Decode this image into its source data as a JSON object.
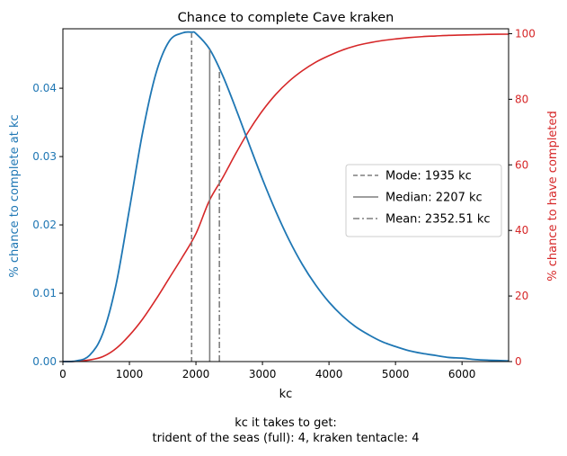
{
  "chart_data": {
    "type": "line",
    "title": "Chance to complete Cave kraken",
    "xlabel": "kc",
    "ylabel_left": "% chance to complete at kc",
    "ylabel_right": "% chance to have completed",
    "xlim": [
      0,
      6700
    ],
    "ylim_left": [
      0,
      0.0487
    ],
    "ylim_right": [
      0,
      101.5
    ],
    "x_ticks": [
      0,
      1000,
      2000,
      3000,
      4000,
      5000,
      6000
    ],
    "y_ticks_left": [
      0.0,
      0.01,
      0.02,
      0.03,
      0.04
    ],
    "y_ticks_left_labels": [
      "0.00",
      "0.01",
      "0.02",
      "0.03",
      "0.04"
    ],
    "y_ticks_right": [
      0,
      20,
      40,
      60,
      80,
      100
    ],
    "colors": {
      "pmf": "#1f77b4",
      "cdf": "#d62728",
      "marker": "#7f7f7f"
    },
    "series": [
      {
        "axis": "left",
        "x": [
          0,
          200,
          400,
          600,
          800,
          1000,
          1200,
          1400,
          1600,
          1800,
          1935,
          2000,
          2200,
          2400,
          2600,
          2800,
          3000,
          3200,
          3400,
          3600,
          3800,
          4000,
          4200,
          4400,
          4600,
          4800,
          5000,
          5200,
          5400,
          5600,
          5800,
          6000,
          6200,
          6400,
          6700
        ],
        "values": [
          0,
          0.0001,
          0.0009,
          0.0041,
          0.0113,
          0.0223,
          0.0336,
          0.0422,
          0.0469,
          0.0481,
          0.0482,
          0.048,
          0.0458,
          0.0419,
          0.037,
          0.0318,
          0.0267,
          0.022,
          0.0178,
          0.0142,
          0.0112,
          0.0087,
          0.0067,
          0.0051,
          0.0039,
          0.0029,
          0.0022,
          0.0016,
          0.0012,
          0.0009,
          0.0006,
          0.0005,
          0.0003,
          0.0002,
          0.0001
        ]
      },
      {
        "axis": "right",
        "x": [
          0,
          200,
          400,
          600,
          800,
          1000,
          1200,
          1400,
          1600,
          1800,
          2000,
          2200,
          2400,
          2600,
          2800,
          3000,
          3200,
          3400,
          3600,
          3800,
          4000,
          4200,
          4400,
          4600,
          4800,
          5000,
          5200,
          5400,
          5600,
          5800,
          6000,
          6200,
          6400,
          6700
        ],
        "values": [
          0,
          0.1,
          0.5,
          1.5,
          4,
          8,
          13,
          19,
          25.5,
          32,
          39,
          49,
          56,
          63.5,
          70.5,
          76.5,
          81.5,
          85.5,
          88.7,
          91.3,
          93.3,
          95,
          96.3,
          97.2,
          97.9,
          98.4,
          98.8,
          99.1,
          99.3,
          99.5,
          99.6,
          99.7,
          99.8,
          99.85
        ]
      }
    ],
    "markers": [
      {
        "label": "Mode: 1935 kc",
        "x": 1935,
        "style": "dashed"
      },
      {
        "label": "Median: 2207 kc",
        "x": 2207,
        "style": "solid"
      },
      {
        "label": "Mean: 2352.51 kc",
        "x": 2352.51,
        "style": "dashdot"
      }
    ],
    "legend_position": "center-right"
  },
  "footer": {
    "line1": "kc it takes to get:",
    "line2": "trident of the seas (full): 4,  kraken tentacle: 4"
  }
}
